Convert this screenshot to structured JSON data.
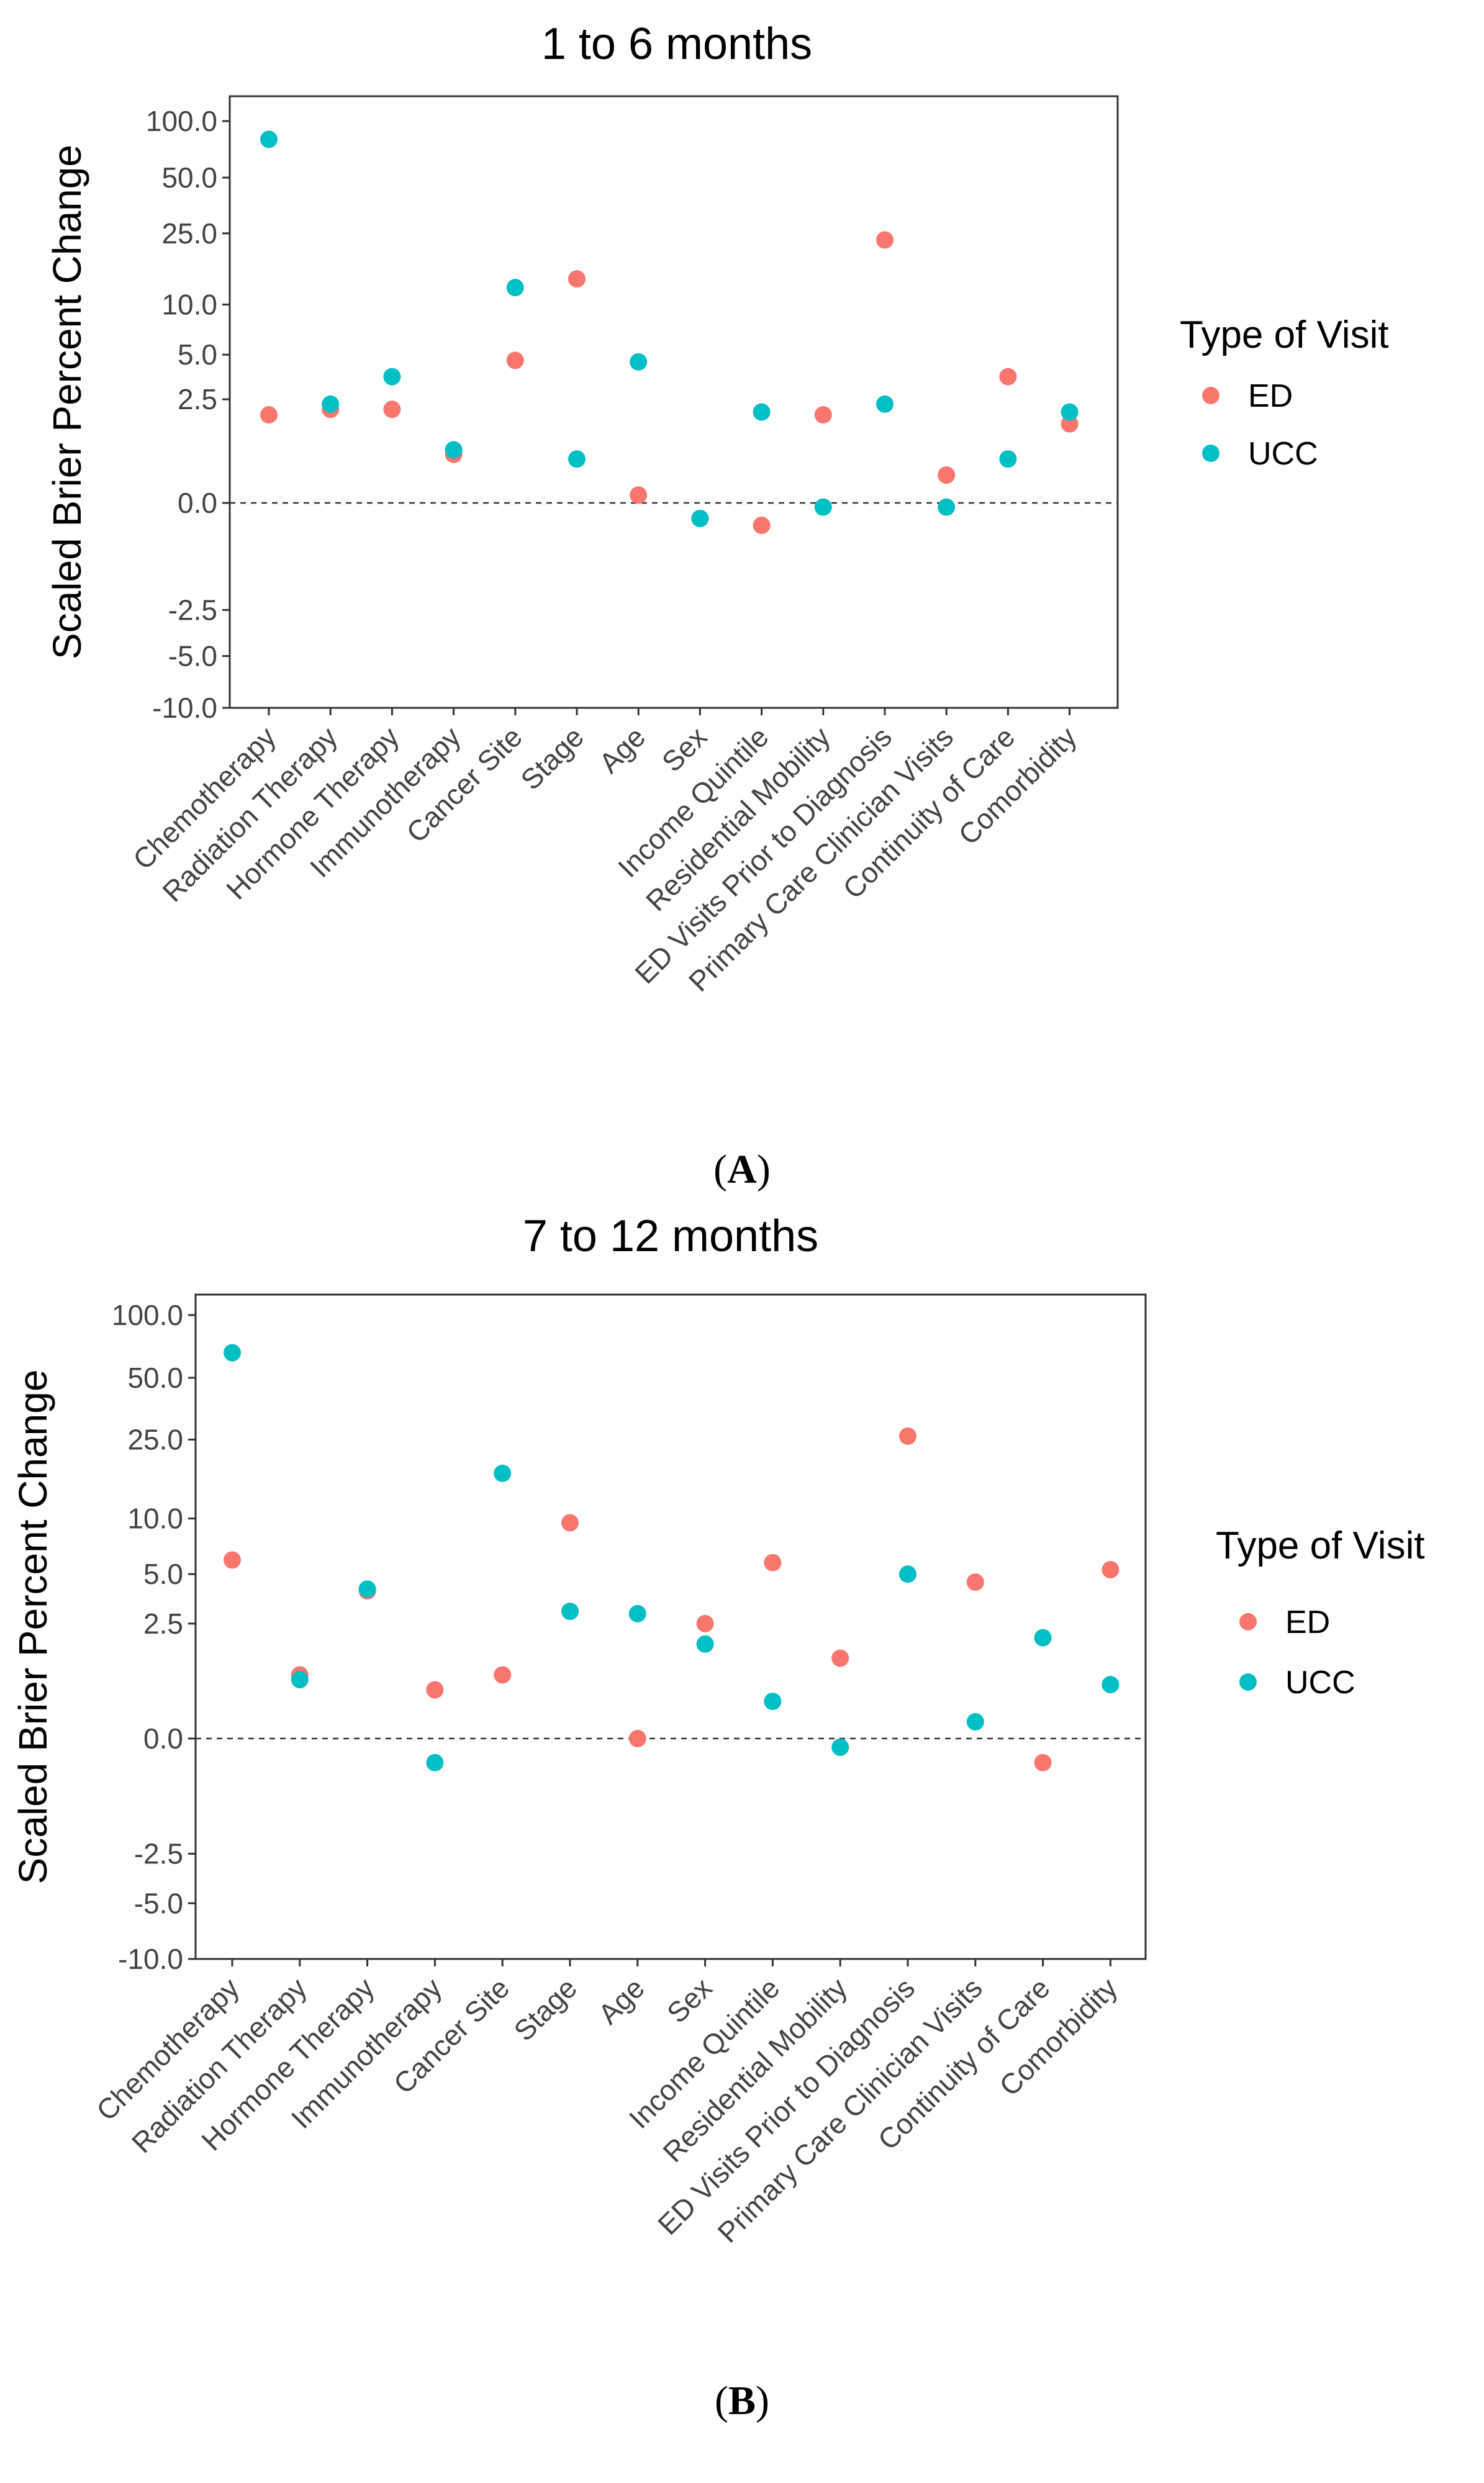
{
  "chart_data": [
    {
      "type": "scatter",
      "panel_label": "A",
      "title": "1 to 6 months",
      "xlabel": "",
      "ylabel": "Scaled Brier Percent Change",
      "y_scale": "pseudo-log (signed)",
      "y_ticks": [
        "100.0",
        "50.0",
        "25.0",
        "10.0",
        "5.0",
        "2.5",
        "0.0",
        "-2.5",
        "-5.0",
        "-10.0"
      ],
      "y_tick_values": [
        100,
        50,
        25,
        10,
        5,
        2.5,
        0,
        -2.5,
        -5,
        -10
      ],
      "ylim": [
        -10,
        100
      ],
      "reference_line": 0,
      "categories": [
        "Chemotherapy",
        "Radiation Therapy",
        "Hormone Therapy",
        "Immunotherapy",
        "Cancer Site",
        "Stage",
        "Age",
        "Sex",
        "Income Quintile",
        "Residential Mobility",
        "ED Visits Prior to Diagnosis",
        "Primary Care Clinician Visits",
        "Continuity of Care",
        "Comorbidity"
      ],
      "legend": {
        "title": "Type of Visit",
        "position": "right"
      },
      "series": [
        {
          "name": "ED",
          "color": "#F8766D",
          "values": [
            1.9,
            2.1,
            2.1,
            0.8,
            4.6,
            14.0,
            0.1,
            -0.2,
            -0.3,
            1.9,
            23.0,
            0.4,
            3.6,
            1.6
          ]
        },
        {
          "name": "UCC",
          "color": "#00BFC4",
          "values": [
            80.0,
            2.3,
            3.6,
            0.9,
            12.5,
            0.7,
            4.5,
            -0.2,
            2.0,
            -0.05,
            2.3,
            -0.05,
            0.7,
            2.0
          ]
        }
      ]
    },
    {
      "type": "scatter",
      "panel_label": "B",
      "title": "7 to 12 months",
      "xlabel": "",
      "ylabel": "Scaled Brier Percent Change",
      "y_scale": "pseudo-log (signed)",
      "y_ticks": [
        "100.0",
        "50.0",
        "25.0",
        "10.0",
        "5.0",
        "2.5",
        "0.0",
        "-2.5",
        "-5.0",
        "-10.0"
      ],
      "y_tick_values": [
        100,
        50,
        25,
        10,
        5,
        2.5,
        0,
        -2.5,
        -5,
        -10
      ],
      "ylim": [
        -10,
        100
      ],
      "reference_line": 0,
      "categories": [
        "Chemotherapy",
        "Radiation Therapy",
        "Hormone Therapy",
        "Immunotherapy",
        "Cancer Site",
        "Stage",
        "Age",
        "Sex",
        "Income Quintile",
        "Residential Mobility",
        "ED Visits Prior to Diagnosis",
        "Primary Care Clinician Visits",
        "Continuity of Care",
        "Comorbidity"
      ],
      "legend": {
        "title": "Type of Visit",
        "position": "right"
      },
      "series": [
        {
          "name": "ED",
          "color": "#F8766D",
          "values": [
            6.0,
            1.0,
            4.0,
            0.7,
            1.0,
            9.5,
            0.0,
            2.5,
            5.8,
            1.4,
            26.0,
            4.5,
            -0.3,
            5.3
          ]
        },
        {
          "name": "UCC",
          "color": "#00BFC4",
          "values": [
            66.0,
            0.9,
            4.1,
            -0.3,
            17.0,
            3.0,
            2.9,
            1.8,
            0.5,
            -0.1,
            5.0,
            0.2,
            2.0,
            0.8
          ]
        }
      ]
    }
  ]
}
